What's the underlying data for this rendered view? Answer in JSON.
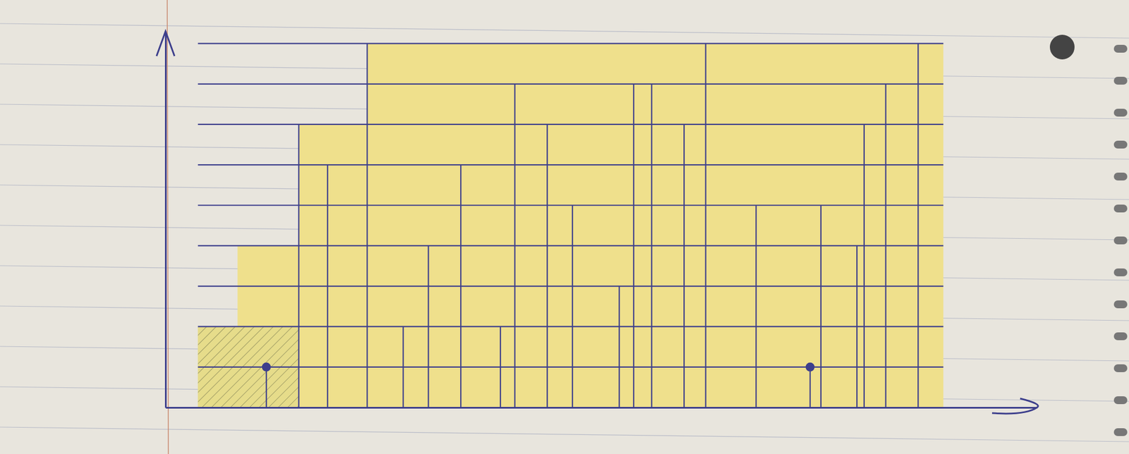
{
  "chart_data": {
    "type": "stem",
    "xlim": [
      0,
      24.2
    ],
    "ylim": [
      0,
      9.3
    ],
    "yticks": [
      1,
      2,
      3,
      4,
      5,
      6,
      7,
      8,
      9
    ],
    "grid": true,
    "tick_labels": false,
    "series": [
      {
        "type": "area",
        "line_style": "step",
        "color": "#efe08c",
        "x": [
          0.9,
          2.0,
          3.7,
          5.6,
          21.6
        ],
        "values": [
          2,
          4,
          7,
          9,
          9
        ]
      },
      {
        "type": "area",
        "line_style": "hatched",
        "color": "#8a8a5a",
        "x": [
          0.9,
          3.7
        ],
        "values": [
          2,
          2
        ]
      },
      {
        "type": "stem",
        "color": "#3d3f8c",
        "x": [
          3.7,
          4.5,
          5.6,
          6.6,
          7.3,
          8.2,
          9.3,
          9.7,
          10.6,
          11.3,
          12.6,
          13.0,
          13.5,
          14.4,
          15.0,
          16.4,
          18.2,
          19.2,
          19.4,
          20.0,
          20.9
        ],
        "values": [
          7,
          6,
          9,
          2,
          4,
          6,
          2,
          8,
          7,
          5,
          3,
          8,
          8,
          7,
          9,
          5,
          5,
          4,
          7,
          8,
          9
        ]
      },
      {
        "type": "stem",
        "marker": "circle",
        "color": "#3d3f8c",
        "x": [
          2.8,
          17.9
        ],
        "values": [
          1,
          1
        ]
      }
    ]
  }
}
